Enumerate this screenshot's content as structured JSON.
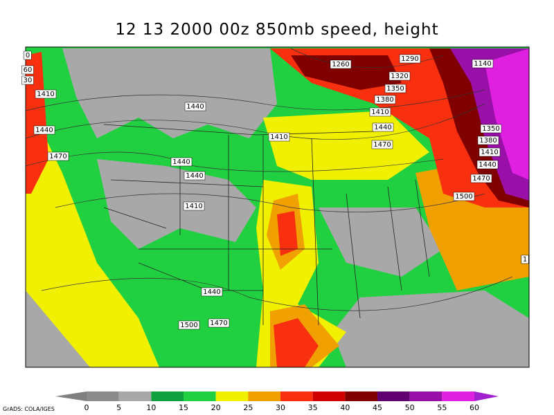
{
  "title": "12 13 2000 00z 850mb speed, height",
  "credit": "GrADS: COLA/IGES",
  "contour_labels": [
    "0",
    "60",
    "30",
    "1410",
    "1440",
    "1470",
    "1440",
    "1410",
    "1440",
    "1440",
    "1410",
    "1260",
    "1290",
    "1320",
    "1350",
    "1380",
    "1410",
    "1440",
    "1470",
    "1140",
    "1350",
    "1380",
    "1410",
    "1440",
    "1470",
    "1500",
    "1",
    "1440",
    "1470",
    "1500"
  ],
  "colorbar": {
    "ticks": [
      0,
      5,
      10,
      15,
      20,
      25,
      30,
      35,
      40,
      45,
      50,
      55,
      60
    ],
    "colors": [
      "#808080",
      "#8c8c8c",
      "#a8a8a8",
      "#10a040",
      "#20d040",
      "#f0f000",
      "#f0a000",
      "#f83010",
      "#d00000",
      "#800000",
      "#600070",
      "#9810a8",
      "#e020e0",
      "#a020d0"
    ]
  }
}
